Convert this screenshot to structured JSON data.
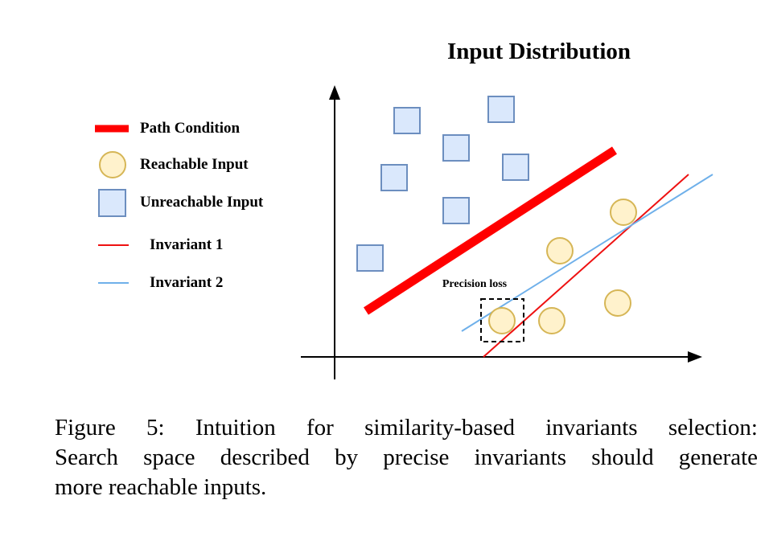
{
  "title": "Input Distribution",
  "legend": {
    "path_condition": "Path Condition",
    "reachable": "Reachable Input",
    "unreachable": "Unreachable Input",
    "invariant1": "Invariant 1",
    "invariant2": "Invariant 2"
  },
  "annotation": "Precision loss",
  "caption": {
    "line1": "Figure 5: Intuition for similarity-based invariants selection:",
    "line2": "Search space described by precise invariants should generate",
    "line3": "more reachable inputs."
  },
  "colors": {
    "path_condition": "#ff0000",
    "invariant1": "#ee1111",
    "invariant2": "#6fb0ea",
    "reachable_fill": "#fff2cc",
    "reachable_stroke": "#d6b656",
    "unreachable_fill": "#dae8fc",
    "unreachable_stroke": "#6c8ebf"
  }
}
